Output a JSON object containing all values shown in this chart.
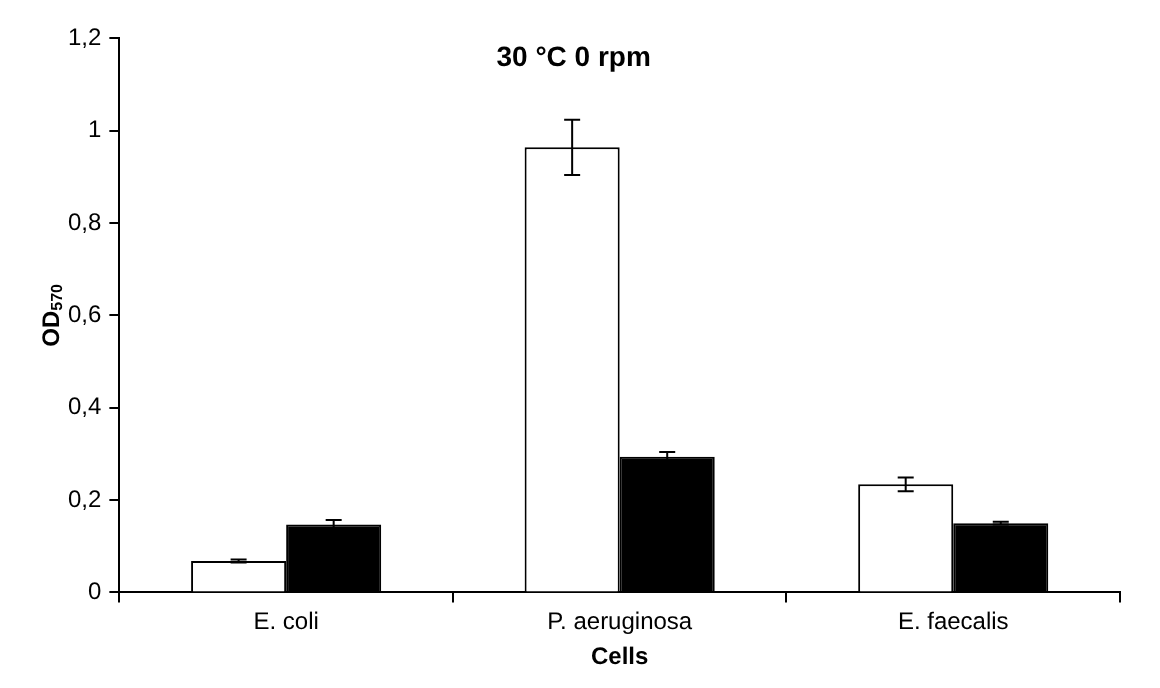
{
  "chart_data": {
    "type": "bar",
    "title": "30 °C 0 rpm",
    "xlabel": "Cells",
    "ylabel": "OD$_{570}$",
    "categories": [
      "E. coli",
      "P. aeruginosa",
      "E. faecalis"
    ],
    "series": [
      {
        "color": "#ffffff",
        "values": [
          0.068,
          0.964,
          0.234
        ],
        "errors": [
          0.003,
          0.06,
          0.015
        ]
      },
      {
        "color": "#000000",
        "values": [
          0.147,
          0.294,
          0.15
        ],
        "errors": [
          0.01,
          0.01,
          0.003
        ]
      }
    ],
    "ylim": [
      0,
      1.2
    ],
    "yticks": [
      0,
      {
        "value": 0.2,
        "label": "0,2"
      },
      {
        "value": 0.4,
        "label": "0,4"
      },
      {
        "value": 0.6,
        "label": "0,6"
      },
      {
        "value": 0.8,
        "label": "0,8"
      },
      1,
      {
        "value": 1.2,
        "label": "1,2"
      }
    ],
    "grid": false,
    "legend": false
  }
}
